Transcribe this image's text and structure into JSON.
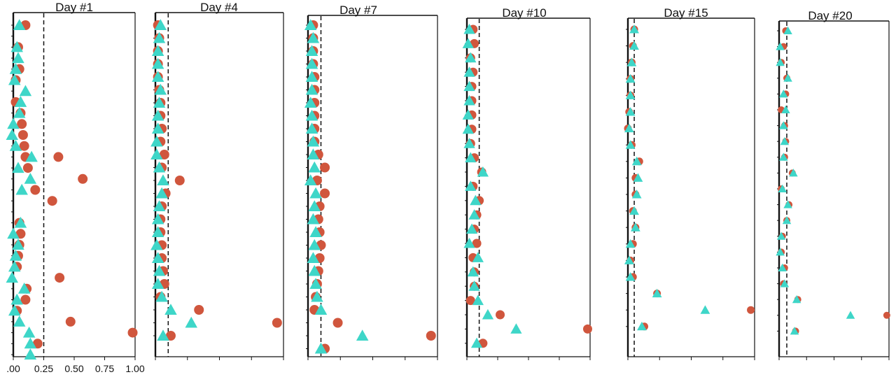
{
  "colors": {
    "circle": "#d0563d",
    "triangle": "#3ed6c8",
    "frame": "#111111"
  },
  "chart_data": [
    {
      "type": "scatter",
      "title": "Day #1",
      "x_ticks": [
        ".00",
        "0.25",
        "0.50",
        "0.75",
        "1.00"
      ],
      "xlim": [
        0,
        1.0
      ],
      "threshold": 0.25,
      "circles": [
        0.1,
        0.04,
        0.05,
        0.02,
        0.02,
        0.06,
        0.07,
        0.08,
        0.09,
        0.1,
        0.37,
        0.12,
        0.57,
        0.18,
        0.32,
        0.05,
        0.06,
        0.05,
        0.04,
        0.03,
        0.38,
        0.11,
        0.1,
        0.03,
        0.47,
        0.98,
        0.2
      ],
      "triangles": [
        0.05,
        0.03,
        0.04,
        0.02,
        0.01,
        0.1,
        0.06,
        0.05,
        0.0,
        -0.01,
        0.02,
        0.15,
        0.04,
        0.14,
        0.07,
        0.06,
        0.0,
        0.04,
        0.02,
        0.01,
        -0.01,
        0.09,
        0.03,
        0.01,
        0.05,
        0.13,
        0.14,
        0.14
      ],
      "circle_rows": [
        1,
        3,
        5,
        6,
        8,
        9,
        10,
        11,
        12,
        13,
        13,
        14,
        15,
        16,
        17,
        19,
        20,
        21,
        22,
        23,
        24,
        25,
        26,
        27,
        28,
        29,
        30
      ],
      "triangle_rows": [
        1,
        3,
        4,
        5,
        6,
        7,
        8,
        9,
        10,
        11,
        12,
        13,
        14,
        15,
        16,
        19,
        20,
        21,
        22,
        23,
        24,
        25,
        26,
        27,
        28,
        29,
        30,
        31
      ]
    },
    {
      "type": "scatter",
      "title": "Day #4",
      "x_ticks": [],
      "xlim": [
        0,
        1.0
      ],
      "threshold": 0.1,
      "circles": [
        0.02,
        0.03,
        0.02,
        0.02,
        0.02,
        0.03,
        0.04,
        0.04,
        0.05,
        0.04,
        0.07,
        0.05,
        0.19,
        0.08,
        0.05,
        0.04,
        0.04,
        0.05,
        0.05,
        0.06,
        0.07,
        0.04,
        0.34,
        0.95,
        0.12
      ],
      "triangles": [
        0.04,
        0.03,
        0.02,
        0.02,
        0.02,
        0.04,
        0.03,
        0.02,
        0.02,
        0.01,
        0.01,
        0.03,
        0.06,
        0.05,
        0.03,
        0.02,
        0.02,
        0.01,
        0.02,
        0.03,
        0.02,
        0.05,
        0.12,
        0.28,
        0.06
      ],
      "circle_rows": [
        1,
        2,
        3,
        4,
        5,
        6,
        7,
        8,
        9,
        10,
        11,
        12,
        13,
        14,
        15,
        16,
        17,
        18,
        19,
        20,
        21,
        22,
        23,
        24,
        25
      ],
      "triangle_rows": [
        1,
        2,
        3,
        4,
        5,
        6,
        7,
        8,
        9,
        10,
        11,
        12,
        13,
        14,
        15,
        16,
        17,
        18,
        19,
        20,
        21,
        22,
        23,
        24,
        25
      ]
    },
    {
      "type": "scatter",
      "title": "Day #7",
      "x_ticks": [],
      "xlim": [
        0,
        1.0
      ],
      "threshold": 0.1,
      "circles": [
        0.04,
        0.04,
        0.04,
        0.04,
        0.05,
        0.05,
        0.05,
        0.05,
        0.05,
        0.05,
        0.08,
        0.13,
        0.07,
        0.13,
        0.09,
        0.08,
        0.09,
        0.1,
        0.09,
        0.08,
        0.07,
        0.06,
        0.05,
        0.23,
        0.95,
        0.13
      ],
      "triangles": [
        0.02,
        0.04,
        0.03,
        0.03,
        0.03,
        0.03,
        0.02,
        0.03,
        0.03,
        0.04,
        0.04,
        0.05,
        0.02,
        0.06,
        0.05,
        0.04,
        0.06,
        0.05,
        0.04,
        0.05,
        0.06,
        0.07,
        0.1,
        0.42,
        0.1
      ],
      "circle_rows": [
        1,
        2,
        3,
        4,
        5,
        6,
        7,
        8,
        9,
        10,
        11,
        12,
        13,
        14,
        15,
        16,
        17,
        18,
        19,
        20,
        21,
        22,
        23,
        24,
        25,
        26
      ],
      "triangle_rows": [
        1,
        2,
        3,
        4,
        5,
        6,
        7,
        8,
        9,
        10,
        11,
        12,
        13,
        14,
        15,
        16,
        17,
        18,
        19,
        20,
        21,
        22,
        23,
        25,
        26
      ]
    },
    {
      "type": "scatter",
      "title": "Day #10",
      "x_ticks": [],
      "xlim": [
        0,
        1.0
      ],
      "threshold": 0.1,
      "circles": [
        0.05,
        0.06,
        0.03,
        0.05,
        0.04,
        0.04,
        0.04,
        0.04,
        0.03,
        0.06,
        0.12,
        0.05,
        0.1,
        0.08,
        0.06,
        0.08,
        0.05,
        0.06,
        0.06,
        0.03,
        0.27,
        0.98,
        0.13
      ],
      "triangles": [
        0.02,
        0.01,
        0.03,
        0.02,
        0.02,
        0.02,
        0.01,
        0.01,
        0.02,
        0.03,
        0.13,
        0.03,
        0.07,
        0.06,
        0.04,
        0.02,
        0.09,
        0.05,
        0.06,
        0.09,
        0.17,
        0.4,
        0.08
      ],
      "circle_rows": [
        1,
        2,
        3,
        4,
        5,
        6,
        7,
        8,
        9,
        10,
        11,
        12,
        13,
        14,
        15,
        16,
        17,
        18,
        19,
        20,
        21,
        22,
        23
      ],
      "triangle_rows": [
        1,
        2,
        3,
        4,
        5,
        6,
        7,
        8,
        9,
        10,
        11,
        12,
        13,
        14,
        15,
        16,
        17,
        18,
        19,
        20,
        21,
        22,
        23
      ]
    },
    {
      "type": "scatter",
      "title": "Day #15",
      "x_ticks": [],
      "xlim": [
        0,
        1.0
      ],
      "threshold": 0.05,
      "circles": [
        0.05,
        0.04,
        0.03,
        0.02,
        0.02,
        0.01,
        0.0,
        0.03,
        0.09,
        0.06,
        0.06,
        0.04,
        0.06,
        0.04,
        0.02,
        0.04,
        0.23,
        0.97,
        0.13
      ],
      "triangles": [
        0.05,
        0.05,
        0.03,
        0.02,
        0.02,
        0.02,
        0.01,
        0.02,
        0.07,
        0.08,
        0.07,
        0.05,
        0.06,
        0.02,
        0.01,
        0.02,
        0.23,
        0.61,
        0.11
      ],
      "circle_rows": [
        1,
        2,
        3,
        4,
        5,
        6,
        7,
        8,
        9,
        10,
        11,
        12,
        13,
        14,
        15,
        16,
        17,
        18,
        19
      ],
      "triangle_rows": [
        1,
        2,
        3,
        4,
        5,
        6,
        7,
        8,
        9,
        10,
        11,
        12,
        13,
        14,
        15,
        16,
        17,
        18,
        19
      ]
    },
    {
      "type": "scatter",
      "title": "Day #20",
      "x_ticks": [],
      "xlim": [
        0,
        1.0
      ],
      "threshold": 0.07,
      "circles": [
        0.06,
        0.04,
        0.02,
        0.07,
        0.06,
        0.02,
        0.05,
        0.06,
        0.05,
        0.12,
        0.02,
        0.09,
        0.07,
        0.03,
        0.02,
        0.05,
        0.04,
        0.17,
        0.98,
        0.15
      ],
      "triangles": [
        0.08,
        0.01,
        0.01,
        0.08,
        0.04,
        0.06,
        0.04,
        0.05,
        0.04,
        0.13,
        0.03,
        0.08,
        0.07,
        0.02,
        0.01,
        0.03,
        0.05,
        0.16,
        0.65,
        0.14
      ],
      "circle_rows": [
        1,
        2,
        3,
        4,
        5,
        6,
        7,
        8,
        9,
        10,
        11,
        12,
        13,
        14,
        15,
        16,
        17,
        18,
        19,
        20
      ],
      "triangle_rows": [
        1,
        2,
        3,
        4,
        5,
        6,
        7,
        8,
        9,
        10,
        11,
        12,
        13,
        14,
        15,
        16,
        17,
        18,
        19,
        20
      ]
    }
  ]
}
